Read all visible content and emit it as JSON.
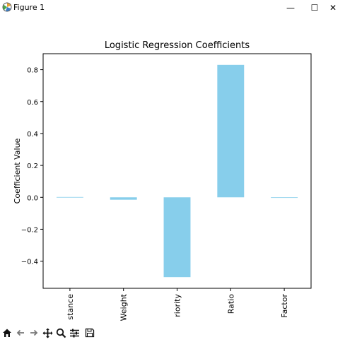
{
  "window": {
    "title": "Figure 1",
    "controls": {
      "minimize": "—",
      "maximize": "☐",
      "close": "✕"
    }
  },
  "toolbar": {
    "tools": [
      {
        "name": "home-icon"
      },
      {
        "name": "back-icon"
      },
      {
        "name": "forward-icon"
      },
      {
        "name": "pan-icon"
      },
      {
        "name": "zoom-icon"
      },
      {
        "name": "configure-subplots-icon"
      },
      {
        "name": "save-icon"
      }
    ]
  },
  "chart_data": {
    "type": "bar",
    "title": "Logistic Regression Coefficients",
    "xlabel": "",
    "ylabel": "Coefficient Value",
    "categories": [
      "stance",
      "Weight",
      "riority",
      "Ratio",
      "Factor"
    ],
    "values": [
      0.002,
      -0.015,
      -0.5,
      0.83,
      0.0
    ],
    "ylim": [
      -0.57,
      0.9
    ],
    "yticks": [
      -0.4,
      -0.2,
      0.0,
      0.2,
      0.4,
      0.6,
      0.8
    ],
    "ytick_labels": [
      "−0.4",
      "−0.2",
      "0.0",
      "0.2",
      "0.4",
      "0.6",
      "0.8"
    ],
    "bar_color": "#87ceeb",
    "grid": false,
    "legend": "none"
  }
}
